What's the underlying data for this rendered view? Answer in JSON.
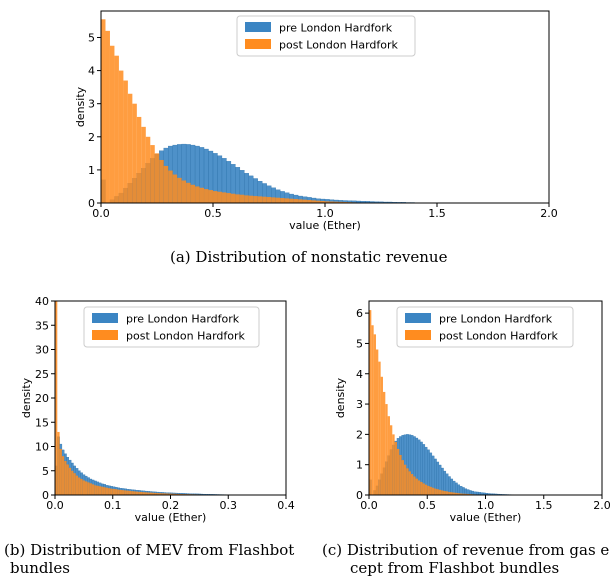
{
  "captions": {
    "a": "(a)  Distribution of nonstatic revenue",
    "b_line1": "(b)  Distribution of MEV from Flashbot",
    "b_line2": "bundles",
    "c_line1": "(c)  Distribution of revenue from gas e",
    "c_line2": "cept from Flashbot bundles"
  },
  "colors": {
    "pre": "#3b85c3",
    "post": "#ff8c1f"
  },
  "chart_data": [
    {
      "type": "histogram",
      "xlabel": "value (Ether)",
      "ylabel": "density",
      "xlim": [
        0,
        2.0
      ],
      "ylim": [
        0,
        5.8
      ],
      "xticks": [
        0.0,
        0.5,
        1.0,
        1.5,
        2.0
      ],
      "xtick_labels": [
        "0.0",
        "0.5",
        "1.0",
        "1.5",
        "2.0"
      ],
      "yticks": [
        0,
        1,
        2,
        3,
        4,
        5
      ],
      "ytick_labels": [
        "0",
        "1",
        "2",
        "3",
        "4",
        "5"
      ],
      "legend": "top-center",
      "bin_width": 0.02,
      "series": [
        {
          "name": "pre London Hardfork",
          "values": [
            0.7,
            0.0,
            0.1,
            0.2,
            0.3,
            0.45,
            0.6,
            0.75,
            0.9,
            1.05,
            1.2,
            1.35,
            1.48,
            1.58,
            1.66,
            1.72,
            1.75,
            1.77,
            1.78,
            1.77,
            1.75,
            1.72,
            1.68,
            1.63,
            1.57,
            1.5,
            1.43,
            1.35,
            1.26,
            1.17,
            1.08,
            0.99,
            0.9,
            0.82,
            0.74,
            0.66,
            0.59,
            0.52,
            0.46,
            0.4,
            0.35,
            0.31,
            0.27,
            0.24,
            0.21,
            0.19,
            0.17,
            0.15,
            0.13,
            0.12,
            0.11,
            0.1,
            0.09,
            0.08,
            0.075,
            0.07,
            0.065,
            0.06,
            0.055,
            0.05,
            0.045,
            0.04,
            0.035,
            0.03,
            0.03,
            0.025,
            0.02,
            0.02,
            0.015,
            0.015,
            0.01,
            0.01,
            0.01,
            0.008,
            0.006,
            0.005,
            0.004,
            0.003,
            0.002,
            0.001
          ]
        },
        {
          "name": "post London Hardfork",
          "values": [
            5.55,
            5.2,
            4.75,
            4.45,
            4.0,
            3.7,
            3.3,
            3.0,
            2.6,
            2.3,
            2.0,
            1.75,
            1.5,
            1.3,
            1.12,
            0.98,
            0.86,
            0.76,
            0.68,
            0.61,
            0.55,
            0.5,
            0.46,
            0.42,
            0.39,
            0.36,
            0.34,
            0.32,
            0.3,
            0.28,
            0.26,
            0.25,
            0.23,
            0.22,
            0.21,
            0.2,
            0.19,
            0.18,
            0.17,
            0.16,
            0.15,
            0.14,
            0.13,
            0.12,
            0.11,
            0.1,
            0.09,
            0.08,
            0.07,
            0.06,
            0.05,
            0.045,
            0.04,
            0.035,
            0.03,
            0.025,
            0.02,
            0.015,
            0.012,
            0.01,
            0.008,
            0.006,
            0.005,
            0.004,
            0.003,
            0.002,
            0.001
          ]
        }
      ]
    },
    {
      "type": "histogram",
      "xlabel": "value (Ether)",
      "ylabel": "density",
      "xlim": [
        0,
        0.4
      ],
      "ylim": [
        0,
        40
      ],
      "xticks": [
        0.0,
        0.1,
        0.2,
        0.3,
        0.4
      ],
      "xtick_labels": [
        "0.0",
        "0.1",
        "0.2",
        "0.3",
        "0.4"
      ],
      "yticks": [
        0,
        5,
        10,
        15,
        20,
        25,
        30,
        35,
        40
      ],
      "ytick_labels": [
        "0",
        "5",
        "10",
        "15",
        "20",
        "25",
        "30",
        "35",
        "40"
      ],
      "legend": "top-right",
      "bin_width": 0.004,
      "series": [
        {
          "name": "pre London Hardfork",
          "values": [
            6.0,
            12.0,
            10.5,
            9.3,
            8.5,
            7.8,
            7.2,
            6.6,
            6.0,
            5.5,
            5.0,
            4.6,
            4.2,
            3.9,
            3.6,
            3.3,
            3.1,
            2.9,
            2.7,
            2.5,
            2.3,
            2.2,
            2.0,
            1.9,
            1.8,
            1.7,
            1.6,
            1.5,
            1.4,
            1.35,
            1.3,
            1.2,
            1.15,
            1.1,
            1.05,
            1.0,
            0.95,
            0.9,
            0.85,
            0.8,
            0.76,
            0.72,
            0.68,
            0.64,
            0.6,
            0.57,
            0.54,
            0.51,
            0.48,
            0.46,
            0.44,
            0.42,
            0.4,
            0.38,
            0.36,
            0.34,
            0.32,
            0.3,
            0.28,
            0.26,
            0.25,
            0.24,
            0.22,
            0.2,
            0.18,
            0.16,
            0.15,
            0.14,
            0.13,
            0.12,
            0.11,
            0.1,
            0.09,
            0.08,
            0.07,
            0.06,
            0.05,
            0.04,
            0.03,
            0.02
          ]
        },
        {
          "name": "post London Hardfork",
          "values": [
            40.0,
            13.0,
            9.5,
            8.0,
            7.0,
            6.3,
            5.6,
            5.0,
            4.5,
            4.0,
            3.6,
            3.3,
            3.0,
            2.8,
            2.6,
            2.4,
            2.2,
            2.0,
            1.9,
            1.8,
            1.7,
            1.6,
            1.5,
            1.4,
            1.3,
            1.25,
            1.2,
            1.1,
            1.05,
            1.0,
            0.95,
            0.9,
            0.85,
            0.8,
            0.75,
            0.7,
            0.66,
            0.62,
            0.58,
            0.55,
            0.52,
            0.49,
            0.46,
            0.43,
            0.4,
            0.38,
            0.36,
            0.34,
            0.32,
            0.3,
            0.28,
            0.26,
            0.24,
            0.22,
            0.2,
            0.19,
            0.18,
            0.17,
            0.16,
            0.15,
            0.14,
            0.13,
            0.12,
            0.11,
            0.1,
            0.09,
            0.08,
            0.07,
            0.06,
            0.05
          ]
        }
      ]
    },
    {
      "type": "histogram",
      "xlabel": "value (Ether)",
      "ylabel": "density",
      "xlim": [
        0,
        2.0
      ],
      "ylim": [
        0,
        6.4
      ],
      "xticks": [
        0.0,
        0.5,
        1.0,
        1.5,
        2.0
      ],
      "xtick_labels": [
        "0.0",
        "0.5",
        "1.0",
        "1.5",
        "2.0"
      ],
      "yticks": [
        0,
        1,
        2,
        3,
        4,
        5,
        6
      ],
      "ytick_labels": [
        "0",
        "1",
        "2",
        "3",
        "4",
        "5",
        "6"
      ],
      "legend": "top-right",
      "bin_width": 0.02,
      "series": [
        {
          "name": "pre London Hardfork",
          "values": [
            0.5,
            0.0,
            0.15,
            0.3,
            0.5,
            0.7,
            0.9,
            1.1,
            1.3,
            1.5,
            1.65,
            1.78,
            1.87,
            1.93,
            1.97,
            1.99,
            2.0,
            1.99,
            1.97,
            1.93,
            1.88,
            1.82,
            1.75,
            1.67,
            1.58,
            1.49,
            1.39,
            1.29,
            1.19,
            1.09,
            0.99,
            0.89,
            0.79,
            0.7,
            0.61,
            0.53,
            0.46,
            0.4,
            0.34,
            0.29,
            0.25,
            0.21,
            0.18,
            0.15,
            0.13,
            0.11,
            0.1,
            0.09,
            0.08,
            0.07,
            0.06,
            0.05,
            0.045,
            0.04,
            0.035,
            0.03,
            0.025,
            0.02,
            0.018,
            0.016,
            0.014,
            0.012,
            0.01,
            0.008,
            0.007,
            0.006,
            0.005,
            0.004,
            0.003,
            0.002
          ]
        },
        {
          "name": "post London Hardfork",
          "values": [
            6.1,
            5.6,
            5.3,
            4.8,
            4.4,
            3.9,
            3.4,
            3.0,
            2.6,
            2.3,
            2.0,
            1.75,
            1.52,
            1.32,
            1.15,
            1.0,
            0.88,
            0.78,
            0.69,
            0.61,
            0.54,
            0.48,
            0.43,
            0.38,
            0.34,
            0.3,
            0.27,
            0.24,
            0.21,
            0.19,
            0.17,
            0.15,
            0.13,
            0.12,
            0.1,
            0.09,
            0.08,
            0.07,
            0.06,
            0.05,
            0.045,
            0.04,
            0.035,
            0.03,
            0.025,
            0.02,
            0.015,
            0.012,
            0.01,
            0.008,
            0.006,
            0.005,
            0.004,
            0.003,
            0.002,
            0.001
          ]
        }
      ]
    }
  ]
}
